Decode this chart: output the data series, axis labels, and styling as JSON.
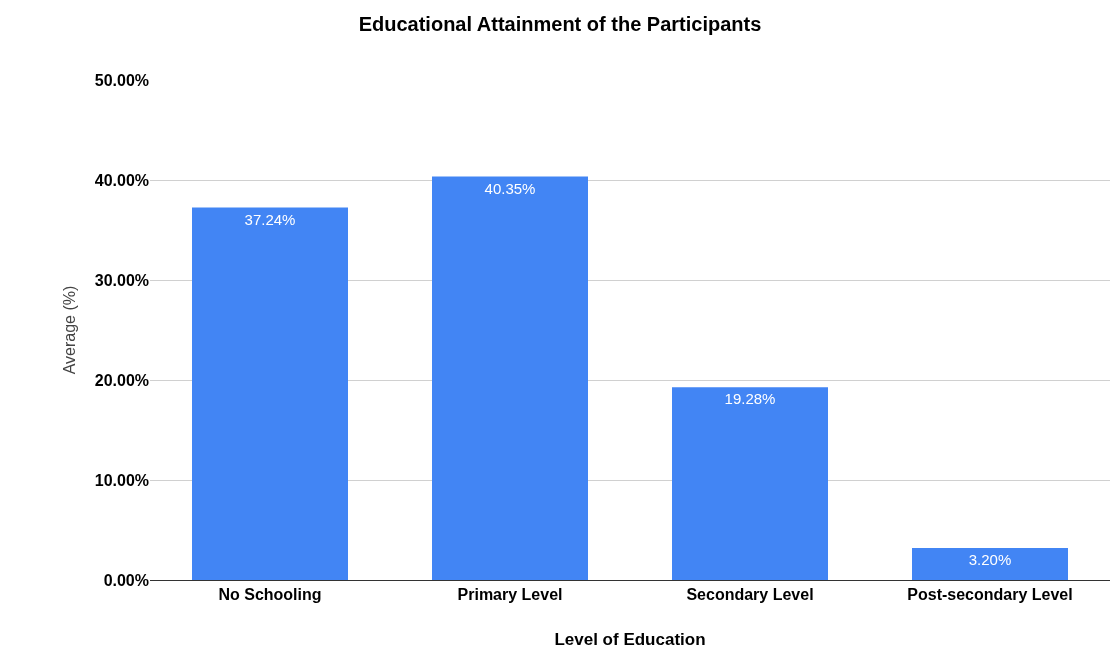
{
  "chart_data": {
    "type": "bar",
    "title": "Educational Attainment of the Participants",
    "xlabel": "Level of Education",
    "ylabel": "Average (%)",
    "categories": [
      "No Schooling",
      "Primary Level",
      "Secondary Level",
      "Post-secondary Level"
    ],
    "values": [
      37.24,
      40.35,
      19.28,
      3.2
    ],
    "value_labels": [
      "37.24%",
      "40.35%",
      "19.28%",
      "3.20%"
    ],
    "color": "#4285f4",
    "ylim": [
      0,
      50
    ],
    "yticks": [
      {
        "value": 0,
        "label": "0.00%"
      },
      {
        "value": 10,
        "label": "10.00%"
      },
      {
        "value": 20,
        "label": "20.00%"
      },
      {
        "value": 30,
        "label": "30.00%"
      },
      {
        "value": 40,
        "label": "40.00%"
      },
      {
        "value": 50,
        "label": "50.00%"
      }
    ],
    "grid": "y",
    "legend": false
  }
}
